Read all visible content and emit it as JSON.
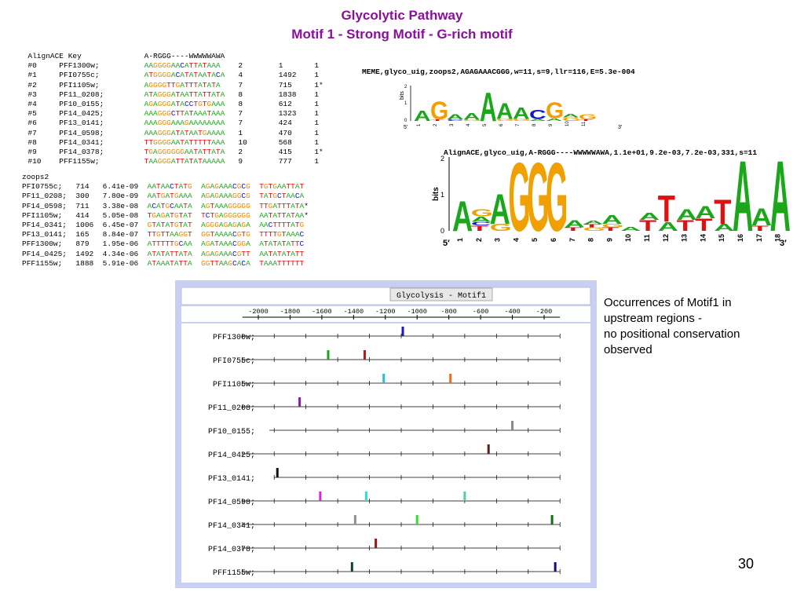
{
  "title_line1": "Glycolytic Pathway",
  "title_line2": "Motif 1 - Strong Motif - G-rich motif",
  "aligncace_header": {
    "c1": "AlignACE Key",
    "c3": "A-RGGG----WWWWWAWA"
  },
  "aligncace_rows": [
    {
      "id": "#0",
      "gene": "PFF1300w;",
      "seq": "AAGGGGAACATTATAAA",
      "a": "2",
      "b": "1",
      "c": "1"
    },
    {
      "id": "#1",
      "gene": "PFI0755c;",
      "seq": "ATGGGGACATATAATACA",
      "a": "4",
      "b": "1492",
      "c": "1"
    },
    {
      "id": "#2",
      "gene": "PFI1105w;",
      "seq": "AGGGGTTGATTTATATA",
      "a": "7",
      "b": "715",
      "c": "1*"
    },
    {
      "id": "#3",
      "gene": "PF11_0208;",
      "seq": "ATAGGGATAATTATTATA",
      "a": "8",
      "b": "1838",
      "c": "1"
    },
    {
      "id": "#4",
      "gene": "PF10_0155;",
      "seq": "AGAGGGATACCTGTGAAA",
      "a": "8",
      "b": "612",
      "c": "1"
    },
    {
      "id": "#5",
      "gene": "PF14_0425;",
      "seq": "AAAGGGCTTATAAATAAA",
      "a": "7",
      "b": "1323",
      "c": "1"
    },
    {
      "id": "#6",
      "gene": "PF13_0141;",
      "seq": "AAAGGGAAAGAAAAAAAA",
      "a": "7",
      "b": "424",
      "c": "1"
    },
    {
      "id": "#7",
      "gene": "PF14_0598;",
      "seq": "AAAGGGATATAATGAAAA",
      "a": "1",
      "b": "470",
      "c": "1"
    },
    {
      "id": "#8",
      "gene": "PF14_0341;",
      "seq": "TTGGGGAATATTTTTAAA",
      "a": "10",
      "b": "568",
      "c": "1"
    },
    {
      "id": "#9",
      "gene": "PF14_0378;",
      "seq": "TGAGGGGGGAATATTATA",
      "a": "2",
      "b": "415",
      "c": "1*"
    },
    {
      "id": "#10",
      "gene": "PFF1155w;",
      "seq": "TAAGGGATTATATAAAAA",
      "a": "9",
      "b": "777",
      "c": "1"
    }
  ],
  "zoops_header": "zoops2",
  "zoops_rows": [
    {
      "gene": "PFI0755c;",
      "pos": "714",
      "e": "6.41e-09",
      "s1": "AATAACTATG",
      "s2": "AGAGAAACGCG",
      "s3": "TGTGAATTAT"
    },
    {
      "gene": "PF11_0208;",
      "pos": "300",
      "e": "7.80e-09",
      "s1": "AATGATGAAA",
      "s2": "AGAGAAAGGCG",
      "s3": "TATGCTAACA"
    },
    {
      "gene": "PF14_0598;",
      "pos": "711",
      "e": "3.38e-08",
      "s1": "ACATGCAATA",
      "s2": "AGTAAAGGGGG",
      "s3": "TTGATTTATA*"
    },
    {
      "gene": "PFI1105w;",
      "pos": "414",
      "e": "5.05e-08",
      "s1": "TGAGATGTAT",
      "s2": "TCTGAGGGGGG",
      "s3": "AATATTATAA*"
    },
    {
      "gene": "PF14_0341;",
      "pos": "1006",
      "e": "6.45e-07",
      "s1": "GTATATGTAT",
      "s2": "AGGGAGAGAGA",
      "s3": "AACTTTTATG"
    },
    {
      "gene": "PF13_0141;",
      "pos": "165",
      "e": "8.84e-07",
      "s1": "TTGTTAAGGT",
      "s2": "GGTAAAACGTG",
      "s3": "TTTTGTAAAC"
    },
    {
      "gene": "PFF1300w;",
      "pos": "879",
      "e": "1.95e-06",
      "s1": "ATTTTTGCAA",
      "s2": "AGATAAACGGA",
      "s3": "ATATATATTC"
    },
    {
      "gene": "PF14_0425;",
      "pos": "1492",
      "e": "4.34e-06",
      "s1": "ATATATTATA",
      "s2": "AGAGAAACGTT",
      "s3": "AATATATATT"
    },
    {
      "gene": "PFF1155w;",
      "pos": "1888",
      "e": "5.91e-06",
      "s1": "ATAAATATTA",
      "s2": "GGTTAAGCACA",
      "s3": "TAAATTTTTT"
    }
  ],
  "meme_label": "MEME,glyco_uig,zoops2,AGAGAAACGGG,w=11,s=9,llr=116,E=5.3e-004",
  "alignace_label": "AlignACE,glyco_uig,A-RGGG----WWWWWAWA,1.1e+01,9.2e-03,7.2e-03,331,s=11",
  "logo1": {
    "ylabel": "bits",
    "y2": "2",
    "y1": "1",
    "y0": "0",
    "five": "5′",
    "three": "3′",
    "positions": [
      "1",
      "2",
      "3",
      "4",
      "5",
      "6",
      "7",
      "8",
      "9",
      "10",
      "11"
    ]
  },
  "logo2": {
    "ylabel": "bits",
    "y2": "2",
    "y1": "1",
    "y0": "0",
    "five": "5′",
    "three": "3′",
    "positions": [
      "1",
      "2",
      "3",
      "4",
      "5",
      "6",
      "7",
      "8",
      "9",
      "10",
      "11",
      "12",
      "13",
      "14",
      "15",
      "16",
      "17",
      "18"
    ]
  },
  "plot_title": "Glycolysis - Motif1",
  "axis_ticks": [
    "-2000",
    "-1800",
    "-1600",
    "-1400",
    "-1200",
    "-1000",
    "-800",
    "-600",
    "-400",
    "-200"
  ],
  "genes": [
    "PFF1300w;",
    "PFI0755c;",
    "PFI1105w;",
    "PF11_0208;",
    "PF10_0155;",
    "PF14_0425;",
    "PF13_0141;",
    "PF14_0598;",
    "PF14_0341;",
    "PF14_0378;",
    "PFF1155w;"
  ],
  "occurrences": [
    [
      {
        "pos": -1090,
        "color": "#1a1ac8"
      }
    ],
    [
      {
        "pos": -1560,
        "color": "#1aa81a"
      },
      {
        "pos": -1330,
        "color": "#d01010"
      }
    ],
    [
      {
        "pos": -1210,
        "color": "#22c0d0"
      },
      {
        "pos": -790,
        "color": "#f07010"
      }
    ],
    [
      {
        "pos": -1740,
        "color": "#8020a0"
      }
    ],
    [
      {
        "pos": -400,
        "color": "#888888"
      }
    ],
    [
      {
        "pos": -550,
        "color": "#602020"
      }
    ],
    [
      {
        "pos": -1880,
        "color": "#111111"
      }
    ],
    [
      {
        "pos": -1610,
        "color": "#e020e0"
      },
      {
        "pos": -1320,
        "color": "#30e0d0"
      },
      {
        "pos": -700,
        "color": "#50d0a0"
      }
    ],
    [
      {
        "pos": -1390,
        "color": "#909090"
      },
      {
        "pos": -1000,
        "color": "#30e030"
      },
      {
        "pos": -150,
        "color": "#107010"
      }
    ],
    [
      {
        "pos": -1260,
        "color": "#a01010"
      }
    ],
    [
      {
        "pos": -1410,
        "color": "#104040"
      },
      {
        "pos": -130,
        "color": "#101080"
      }
    ]
  ],
  "note": [
    "Occurrences of Motif1 in",
    "upstream regions -",
    "no positional conservation",
    "observed"
  ],
  "page_number": "30"
}
